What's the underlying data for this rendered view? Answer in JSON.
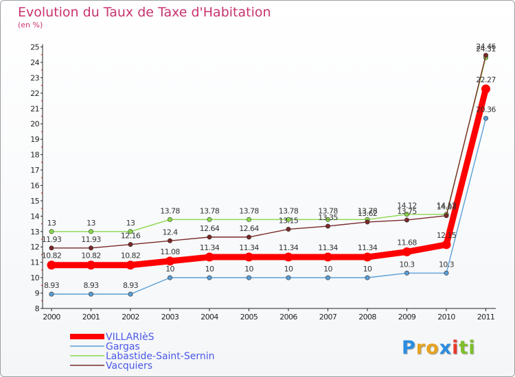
{
  "chart_data": {
    "type": "line",
    "title": "Evolution du Taux de Taxe d'Habitation",
    "subtitle": "(en %)",
    "x": [
      "2000",
      "2001",
      "2002",
      "2003",
      "2004",
      "2005",
      "2006",
      "2007",
      "2008",
      "2009",
      "2010",
      "2011"
    ],
    "ylim": [
      8,
      25
    ],
    "yticks": [
      8,
      9,
      10,
      11,
      12,
      13,
      14,
      15,
      16,
      17,
      18,
      19,
      20,
      21,
      22,
      23,
      24,
      25
    ],
    "grid": false,
    "legend": "bottom-left",
    "series": [
      {
        "name": "VILLARIèS",
        "color": "#ff0000",
        "values": [
          10.82,
          10.82,
          10.82,
          11.08,
          11.34,
          11.34,
          11.34,
          11.34,
          11.34,
          11.68,
          12.15,
          22.27
        ],
        "labels": [
          "10.82",
          "10.82",
          "10.82",
          "11.08",
          "11.34",
          "11.34",
          "11.34",
          "11.34",
          "11.34",
          "11.68",
          "12.15",
          "22.27"
        ]
      },
      {
        "name": "Gargas",
        "color": "#5a9ed6",
        "values": [
          8.93,
          8.93,
          8.93,
          10,
          10,
          10,
          10,
          10,
          10,
          10.3,
          10.3,
          20.36
        ],
        "labels": [
          "8.93",
          "8.93",
          "8.93",
          "10",
          "10",
          "10",
          "10",
          "10",
          "10",
          "10.3",
          "10.3",
          "20.36"
        ]
      },
      {
        "name": "Labastide-Saint-Sernin",
        "color": "#8ad84a",
        "values": [
          13,
          13,
          13,
          13.78,
          13.78,
          13.78,
          13.78,
          13.78,
          13.78,
          14.12,
          14.12,
          24.31
        ],
        "labels": [
          "13",
          "13",
          "13",
          "13.78",
          "13.78",
          "13.78",
          "13.78",
          "13.78",
          "13.78",
          "14.12",
          "14.12",
          "24.31"
        ]
      },
      {
        "name": "Vacquiers",
        "color": "#7a2828",
        "values": [
          11.93,
          11.93,
          12.16,
          12.4,
          12.64,
          12.64,
          13.15,
          13.35,
          13.62,
          13.75,
          14.03,
          24.46
        ],
        "labels": [
          "11.93",
          "11.93",
          "12.16",
          "12.4",
          "12.64",
          "12.64",
          "13.15",
          "13.35",
          "13.62",
          "13.75",
          "14.03",
          "24.46"
        ]
      }
    ]
  },
  "logo": {
    "letters": [
      "P",
      "r",
      "o",
      "x",
      "i",
      "t",
      "i"
    ],
    "colors": [
      "#2a8de0",
      "#e8a21e",
      "#e8a21e",
      "#2a8de0",
      "#e83a2a",
      "#7fbf2a",
      "#7fbf2a"
    ]
  }
}
